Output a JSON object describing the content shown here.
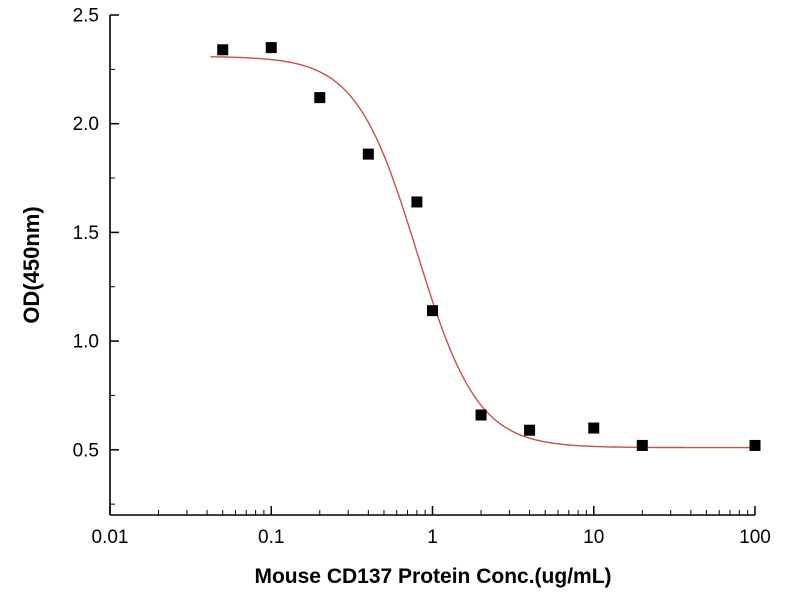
{
  "chart_data": {
    "type": "scatter",
    "title": "",
    "xlabel": "Mouse CD137 Protein Conc.(ug/mL)",
    "ylabel": "OD(450nm)",
    "x_scale": "log",
    "y_scale": "linear",
    "xlim": [
      0.01,
      100
    ],
    "ylim": [
      0.2,
      2.5
    ],
    "grid": false,
    "legend": false,
    "x_ticks": [
      {
        "value": 0.01,
        "label": "0.01"
      },
      {
        "value": 0.1,
        "label": "0.1"
      },
      {
        "value": 1,
        "label": "1"
      },
      {
        "value": 10,
        "label": "10"
      },
      {
        "value": 100,
        "label": "100"
      }
    ],
    "y_ticks": [
      {
        "value": 0.5,
        "label": "0.5"
      },
      {
        "value": 1.0,
        "label": "1.0"
      },
      {
        "value": 1.5,
        "label": "1.5"
      },
      {
        "value": 2.0,
        "label": "2.0"
      },
      {
        "value": 2.5,
        "label": "2.5"
      }
    ],
    "y_minor_step": 0.25,
    "points": [
      {
        "x": 0.05,
        "y": 2.34
      },
      {
        "x": 0.1,
        "y": 2.35
      },
      {
        "x": 0.2,
        "y": 2.12
      },
      {
        "x": 0.4,
        "y": 1.86
      },
      {
        "x": 0.8,
        "y": 1.64
      },
      {
        "x": 1,
        "y": 1.14
      },
      {
        "x": 2,
        "y": 0.66
      },
      {
        "x": 4,
        "y": 0.59
      },
      {
        "x": 10,
        "y": 0.6
      },
      {
        "x": 20,
        "y": 0.52
      },
      {
        "x": 100,
        "y": 0.52
      }
    ],
    "fit_curve": {
      "model": "4PL-sigmoid",
      "top": 2.31,
      "bottom": 0.51,
      "ec50": 0.8,
      "hill": 2.3,
      "x_start": 0.042,
      "x_end": 100
    },
    "marker": {
      "shape": "square",
      "size": 11,
      "color": "#000000"
    },
    "curve_color": "#c4524c",
    "axis_color": "#000000"
  }
}
